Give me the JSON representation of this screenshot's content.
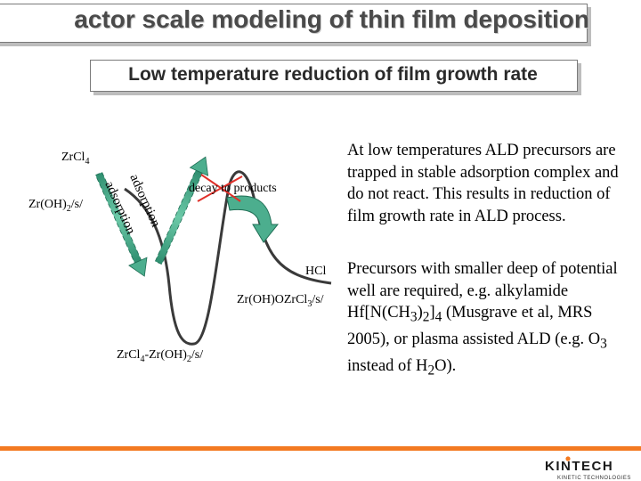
{
  "slide": {
    "title": "actor scale modeling of thin film deposition",
    "subtitle": "Low temperature reduction of film growth rate"
  },
  "diagram": {
    "labels": {
      "zrcl4": "ZrCl4",
      "zroh2": "Zr(OH)2/s/",
      "adsorption_outer": "adsorption",
      "adsorption_inner": "adsorption",
      "decay": "decay to products",
      "hcl": "HCl",
      "product": "Zr(OH)OZrCl3/s/",
      "complex": "ZrCl4-Zr(OH)2/s/"
    },
    "colors": {
      "curve": "#3a3a3a",
      "arrow_fill": "#4cae8e",
      "arrow_dark": "#1f6e55",
      "cross": "#e0302a"
    }
  },
  "text": {
    "para1": "At low temperatures ALD precursors are trapped in stable adsorption complex and do not react. This results in reduction of film growth rate in ALD process.",
    "para2_a": "Precursors with smaller deep of potential well are required, e.g. alkylamide Hf[N(CH",
    "para2_sub1": "3",
    "para2_b": ")",
    "para2_sub2": "2",
    "para2_c": "]",
    "para2_sub3": "4",
    "para2_d": " (Musgrave et al, MRS 2005), or plasma assisted ALD (e.g. O",
    "para2_sub4": "3",
    "para2_e": " instead of H",
    "para2_sub5": "2",
    "para2_f": "O)."
  },
  "footer": {
    "logo_name": "KINTECH",
    "logo_tagline": "KINETIC TECHNOLOGIES",
    "accent": "#f37a21"
  }
}
